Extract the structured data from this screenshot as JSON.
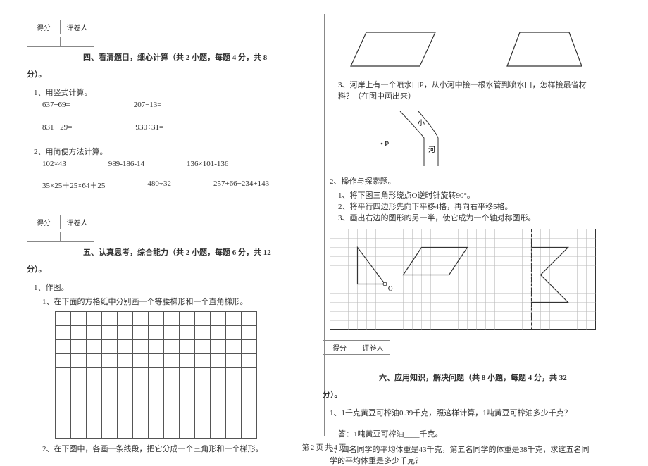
{
  "scorebox": {
    "col1": "得分",
    "col2": "评卷人"
  },
  "section4": {
    "title": "四、看清题目，细心计算（共 2 小题，每题 4 分，共 8",
    "title_tail": "分）。",
    "q1_label": "1、用竖式计算。",
    "q1_items": [
      "637÷69=",
      "207÷13=",
      "831÷ 29=",
      "930÷31="
    ],
    "q2_label": "2、用简便方法计算。",
    "q2_items": [
      "102×43",
      "989-186-14",
      "136×101-136",
      "35×25＋25×64＋25",
      "480÷32",
      "257+66+234+143"
    ]
  },
  "section5": {
    "title": "五、认真思考，综合能力（共 2 小题，每题 6 分，共 12",
    "title_tail": "分）。",
    "q1_label": "1、作图。",
    "q1_sub1": "1、在下面的方格纸中分别画一个等腰梯形和一个直角梯形。",
    "q1_sub2": "2、在下图中，各画一条线段，把它分成一个三角形和一个梯形。",
    "grid": {
      "rows": 9,
      "cols": 13
    },
    "q1_right": {
      "sub3": "3、河岸上有一个喷水口P，从小河中接一根水管到喷水口，怎样接最省材料？（在图中画出来）",
      "p_label": "P",
      "river_lbl_top": "小",
      "river_lbl_bot": "河"
    },
    "q2_label": "2、操作与探索题。",
    "q2_sub1": "1、将下图三角形绕点O逆时针旋转90°。",
    "q2_sub2": "2、将平行四边形先向下平移4格，再向右平移5格。",
    "q2_sub3": "3、画出右边的图形的另一半，使它成为一个轴对称图形。",
    "op_grid": {
      "cols": 29,
      "rows": 11,
      "cell": 13
    }
  },
  "section6": {
    "title": "六、应用知识，解决问题（共 8 小题，每题 4 分，共 32",
    "title_tail": "分）。",
    "q1": "1、1千克黄豆可榨油0.39千克，照这样计算，1吨黄豆可榨油多少千克？",
    "q1_ans": "答：1吨黄豆可榨油____千克。",
    "q2": "2、四名同学的平均体重是43千克，第五名同学的体重是38千克，求这五名同学的平均体重是多少千克？"
  },
  "footer": "第 2 页 共 4 页",
  "colors": {
    "line": "#555555",
    "text": "#333333",
    "bg": "#ffffff"
  }
}
